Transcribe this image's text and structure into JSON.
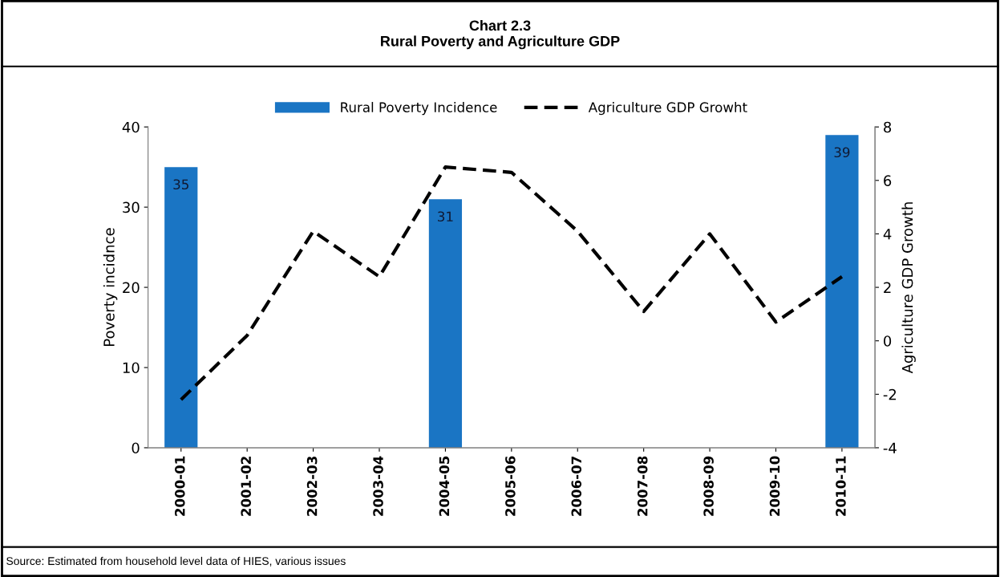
{
  "chart_data": {
    "type": "bar",
    "title": "Chart 2.3\nRural Poverty and Agriculture GDP",
    "categories": [
      "2000-01",
      "2001-02",
      "2002-03",
      "2003-04",
      "2004-05",
      "2005-06",
      "2006-07",
      "2007-08",
      "2008-09",
      "2009-10",
      "2010-11"
    ],
    "series": [
      {
        "name": "Rural Poverty Incidence",
        "color": "#1a75c4",
        "values": [
          35,
          null,
          null,
          null,
          31,
          null,
          null,
          null,
          null,
          null,
          39
        ],
        "value_labels": [
          "35",
          null,
          null,
          null,
          "31",
          null,
          null,
          null,
          null,
          null,
          "39"
        ]
      },
      {
        "name": "Agriculture GDP Growht",
        "type": "line",
        "axis": "y2",
        "color": "#000000",
        "line_style": "dashed",
        "values": [
          -2.2,
          0.2,
          4.1,
          2.4,
          6.5,
          6.3,
          4.1,
          1.1,
          4.0,
          0.7,
          2.4
        ]
      }
    ],
    "ylabel": "Poverty incidnce",
    "y2label": "Agriculture GDP Growth",
    "ylim": [
      0,
      40
    ],
    "yticks": [
      0,
      10,
      20,
      30,
      40
    ],
    "y2lim": [
      -4,
      8
    ],
    "y2ticks": [
      -4,
      -2,
      0,
      2,
      4,
      6,
      8
    ],
    "legend": "top",
    "grid": false,
    "annotations": [
      "Source: Estimated from household level data of HIES, various issues"
    ]
  }
}
